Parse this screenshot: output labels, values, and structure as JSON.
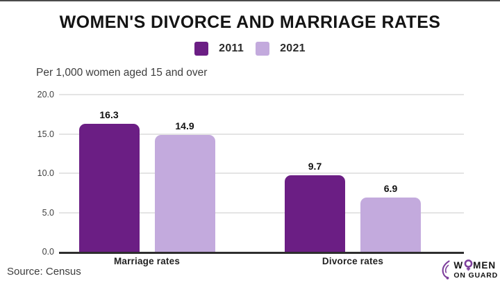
{
  "title": "WOMEN'S DIVORCE AND MARRIAGE RATES",
  "subtitle": "Per 1,000 women aged 15 and over",
  "source": "Source: Census",
  "legend": [
    {
      "label": "2011",
      "color": "#6b1e84"
    },
    {
      "label": "2021",
      "color": "#c3aadd"
    }
  ],
  "colors": {
    "series_2011": "#6b1e84",
    "series_2021": "#c3aadd",
    "gridline": "#e4e4e4",
    "axis": "#2e2e2e",
    "logo_purple": "#7e3f9c"
  },
  "logo": {
    "word_prefix": "W",
    "word_suffix": "MEN",
    "line2": "ON GUARD"
  },
  "chart_data": {
    "type": "bar",
    "categories": [
      "Marriage rates",
      "Divorce rates"
    ],
    "series": [
      {
        "name": "2011",
        "color": "#6b1e84",
        "values": [
          16.3,
          9.7
        ]
      },
      {
        "name": "2021",
        "color": "#c3aadd",
        "values": [
          14.9,
          6.9
        ]
      }
    ],
    "title": "WOMEN'S DIVORCE AND MARRIAGE RATES",
    "subtitle": "Per 1,000 women aged 15 and over",
    "ylim": [
      0,
      20
    ],
    "ytick_values": [
      20,
      15,
      10,
      5,
      0
    ],
    "ytick_labels": [
      "20.0",
      "15.0",
      "10.0",
      "5.0",
      "0.0"
    ],
    "grid": true,
    "legend_position": "top-center",
    "value_label_format": "one-decimal"
  }
}
